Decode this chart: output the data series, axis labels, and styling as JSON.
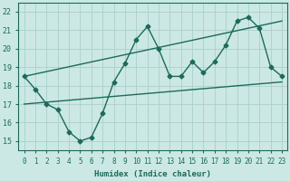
{
  "background_color": "#cce8e4",
  "grid_color": "#aad0cc",
  "line_color": "#1a6b5a",
  "xlabel": "Humidex (Indice chaleur)",
  "xlim": [
    -0.5,
    23.5
  ],
  "ylim": [
    14.5,
    22.5
  ],
  "yticks": [
    15,
    16,
    17,
    18,
    19,
    20,
    21,
    22
  ],
  "xticks": [
    0,
    1,
    2,
    3,
    4,
    5,
    6,
    7,
    8,
    9,
    10,
    11,
    12,
    13,
    14,
    15,
    16,
    17,
    18,
    19,
    20,
    21,
    22,
    23
  ],
  "zigzag_x": [
    0,
    1,
    2,
    3,
    4,
    5,
    6,
    7,
    8,
    9,
    10,
    11,
    12,
    13,
    14,
    15,
    16,
    17,
    18,
    19,
    20,
    21,
    22,
    23
  ],
  "zigzag_y": [
    18.5,
    17.8,
    17.0,
    16.7,
    15.5,
    15.0,
    15.2,
    16.5,
    18.2,
    19.2,
    20.5,
    21.2,
    20.0,
    18.5,
    18.5,
    19.3,
    18.7,
    19.3,
    20.2,
    21.5,
    21.7,
    21.1,
    19.0,
    18.5
  ],
  "upper_trend_x": [
    0,
    23
  ],
  "upper_trend_y": [
    18.5,
    21.5
  ],
  "lower_trend_x": [
    0,
    23
  ],
  "lower_trend_y": [
    17.0,
    18.2
  ],
  "marker": "D",
  "markersize": 2.5,
  "linewidth": 1.0
}
